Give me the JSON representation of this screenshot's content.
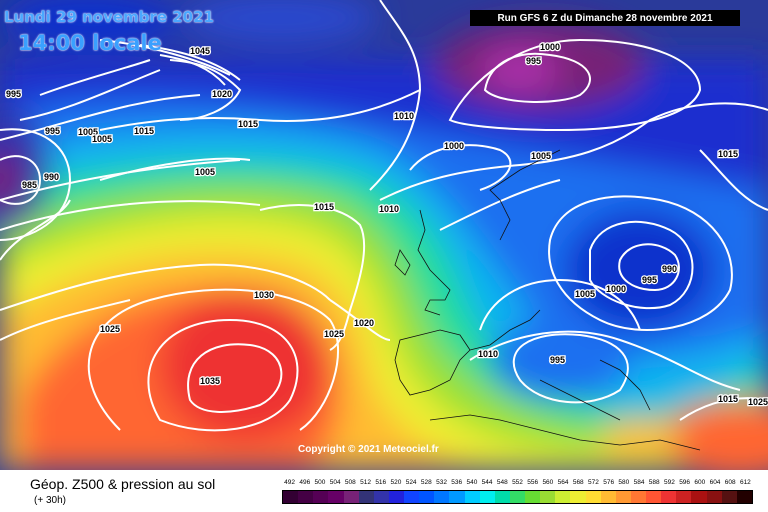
{
  "header": {
    "date": "Lundi 29 novembre 2021",
    "time": "14:00 locale",
    "run": "Run GFS 6 Z du Dimanche 28 novembre 2021"
  },
  "copyright": "Copyright © 2021 Meteociel.fr",
  "product": {
    "title": "Géop. Z500 & pression au sol",
    "subtitle": "(+ 30h)"
  },
  "legend": {
    "ticks": [
      "492",
      "496",
      "500",
      "504",
      "508",
      "512",
      "516",
      "520",
      "524",
      "528",
      "532",
      "536",
      "540",
      "544",
      "548",
      "552",
      "556",
      "560",
      "564",
      "568",
      "572",
      "576",
      "580",
      "584",
      "588",
      "592",
      "596",
      "600",
      "604",
      "608",
      "612"
    ],
    "colors": [
      "#330033",
      "#440044",
      "#550055",
      "#660066",
      "#772277",
      "#333377",
      "#3333aa",
      "#2222dd",
      "#1144ff",
      "#0055ff",
      "#0077ff",
      "#0099ff",
      "#00ccff",
      "#00eeee",
      "#00ddaa",
      "#33dd66",
      "#66dd33",
      "#99dd33",
      "#ccee33",
      "#eeee33",
      "#ffdd33",
      "#ffbb33",
      "#ff9933",
      "#ff7733",
      "#ff5533",
      "#ee3333",
      "#cc2222",
      "#aa1111",
      "#881111",
      "#551111",
      "#220000"
    ]
  },
  "isobar_labels": [
    {
      "text": "1000"
    },
    {
      "text": "995"
    },
    {
      "text": "1045"
    },
    {
      "text": "1020"
    },
    {
      "text": "995"
    },
    {
      "text": "995"
    },
    {
      "text": "1005"
    },
    {
      "text": "1005"
    },
    {
      "text": "1015"
    },
    {
      "text": "1015"
    },
    {
      "text": "1010"
    },
    {
      "text": "1000"
    },
    {
      "text": "1005"
    },
    {
      "text": "1015"
    },
    {
      "text": "990"
    },
    {
      "text": "985"
    },
    {
      "text": "1005"
    },
    {
      "text": "1015"
    },
    {
      "text": "1010"
    },
    {
      "text": "1030"
    },
    {
      "text": "1025"
    },
    {
      "text": "1020"
    },
    {
      "text": "1025"
    },
    {
      "text": "1035"
    },
    {
      "text": "1005"
    },
    {
      "text": "1000"
    },
    {
      "text": "995"
    },
    {
      "text": "990"
    },
    {
      "text": "1010"
    },
    {
      "text": "995"
    },
    {
      "text": "1015"
    },
    {
      "text": "1025"
    }
  ]
}
